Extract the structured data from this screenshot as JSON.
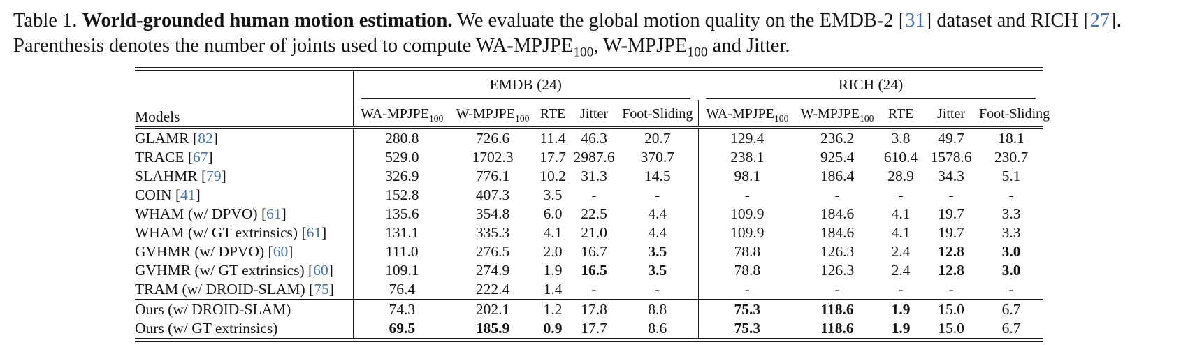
{
  "caption": {
    "lines": [
      {
        "segments": [
          {
            "t": "Table 1. "
          },
          {
            "t": "World-grounded human motion estimation.",
            "s": "b"
          },
          {
            "t": " We evaluate the global motion quality on the EMDB-2 ["
          },
          {
            "t": "31",
            "s": "c"
          },
          {
            "t": "] dataset and RICH ["
          },
          {
            "t": "27",
            "s": "c"
          },
          {
            "t": "]."
          }
        ]
      },
      {
        "segments": [
          {
            "t": "Parenthesis denotes the number of joints used to compute WA-MPJPE"
          },
          {
            "t": "100",
            "s": "sub"
          },
          {
            "t": ", W-MPJPE"
          },
          {
            "t": "100",
            "s": "sub"
          },
          {
            "t": " and Jitter."
          }
        ]
      }
    ]
  },
  "table": {
    "models_header": "Models",
    "groups": [
      {
        "label": "EMDB (24)"
      },
      {
        "label": "RICH (24)"
      }
    ],
    "metric_headers": [
      {
        "pre": "WA-MPJPE",
        "sub": "100"
      },
      {
        "pre": "W-MPJPE",
        "sub": "100"
      },
      {
        "pre": "RTE",
        "sub": ""
      },
      {
        "pre": "Jitter",
        "sub": ""
      },
      {
        "pre": "Foot-Sliding",
        "sub": ""
      }
    ],
    "cite_color": "#4374ae",
    "rows": [
      {
        "model": "GLAMR",
        "cite": "82",
        "emdb": [
          "280.8",
          "726.6",
          "11.4",
          "46.3",
          "20.7"
        ],
        "rich": [
          "129.4",
          "236.2",
          "3.8",
          "49.7",
          "18.1"
        ]
      },
      {
        "model": "TRACE",
        "cite": "67",
        "emdb": [
          "529.0",
          "1702.3",
          "17.7",
          "2987.6",
          "370.7"
        ],
        "rich": [
          "238.1",
          "925.4",
          "610.4",
          "1578.6",
          "230.7"
        ]
      },
      {
        "model": "SLAHMR",
        "cite": "79",
        "emdb": [
          "326.9",
          "776.1",
          "10.2",
          "31.3",
          "14.5"
        ],
        "rich": [
          "98.1",
          "186.4",
          "28.9",
          "34.3",
          "5.1"
        ]
      },
      {
        "model": "COIN",
        "cite": "41",
        "emdb": [
          "152.8",
          "407.3",
          "3.5",
          "-",
          "-"
        ],
        "rich": [
          "-",
          "-",
          "-",
          "-",
          "-"
        ]
      },
      {
        "model": "WHAM (w/ DPVO)",
        "cite": "61",
        "emdb": [
          "135.6",
          "354.8",
          "6.0",
          "22.5",
          "4.4"
        ],
        "rich": [
          "109.9",
          "184.6",
          "4.1",
          "19.7",
          "3.3"
        ]
      },
      {
        "model": "WHAM (w/ GT extrinsics)",
        "cite": "61",
        "emdb": [
          "131.1",
          "335.3",
          "4.1",
          "21.0",
          "4.4"
        ],
        "rich": [
          "109.9",
          "184.6",
          "4.1",
          "19.7",
          "3.3"
        ]
      },
      {
        "model": "GVHMR (w/ DPVO)",
        "cite": "60",
        "emdb": [
          "111.0",
          "276.5",
          "2.0",
          "16.7",
          {
            "t": "3.5",
            "b": true
          }
        ],
        "rich": [
          "78.8",
          "126.3",
          "2.4",
          {
            "t": "12.8",
            "b": true
          },
          {
            "t": "3.0",
            "b": true
          }
        ]
      },
      {
        "model": "GVHMR (w/ GT extrinsics)",
        "cite": "60",
        "emdb": [
          "109.1",
          "274.9",
          "1.9",
          {
            "t": "16.5",
            "b": true
          },
          {
            "t": "3.5",
            "b": true
          }
        ],
        "rich": [
          "78.8",
          "126.3",
          "2.4",
          {
            "t": "12.8",
            "b": true
          },
          {
            "t": "3.0",
            "b": true
          }
        ]
      },
      {
        "model": "TRAM (w/ DROID-SLAM)",
        "cite": "75",
        "emdb": [
          "76.4",
          "222.4",
          "1.4",
          "-",
          "-"
        ],
        "rich": [
          "-",
          "-",
          "-",
          "-",
          "-"
        ]
      }
    ],
    "ours_rows": [
      {
        "model": "Ours (w/ DROID-SLAM)",
        "cite": null,
        "emdb": [
          "74.3",
          "202.1",
          "1.2",
          "17.8",
          "8.8"
        ],
        "rich": [
          {
            "t": "75.3",
            "b": true
          },
          {
            "t": "118.6",
            "b": true
          },
          {
            "t": "1.9",
            "b": true
          },
          "15.0",
          "6.7"
        ]
      },
      {
        "model": "Ours (w/ GT extrinsics)",
        "cite": null,
        "emdb": [
          {
            "t": "69.5",
            "b": true
          },
          {
            "t": "185.9",
            "b": true
          },
          {
            "t": "0.9",
            "b": true
          },
          "17.7",
          "8.6"
        ],
        "rich": [
          {
            "t": "75.3",
            "b": true
          },
          {
            "t": "118.6",
            "b": true
          },
          {
            "t": "1.9",
            "b": true
          },
          "15.0",
          "6.7"
        ]
      }
    ]
  }
}
